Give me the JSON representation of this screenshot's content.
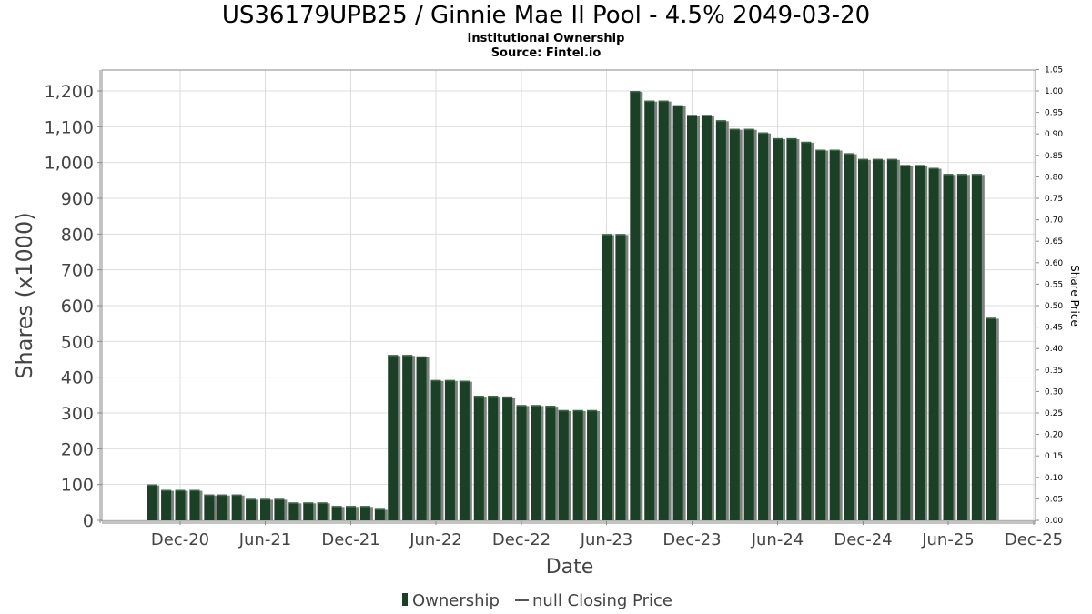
{
  "header": {
    "title": "US36179UPB25 / Ginnie Mae II Pool - 4.5% 2049-03-20",
    "subtitle": "Institutional Ownership",
    "source": "Source: Fintel.io"
  },
  "legend": {
    "ownership_label": "Ownership",
    "price_label": "null Closing Price"
  },
  "colors": {
    "bar": "#1a4025",
    "bar_highlight": "#3a6a45",
    "bar_shadow": "#808080",
    "grid": "#dddddd",
    "axis": "#888888"
  },
  "chart_data": {
    "type": "bar",
    "title": "US36179UPB25 / Ginnie Mae II Pool - 4.5% 2049-03-20",
    "xlabel": "Date",
    "ylabel": "Shares (x1000)",
    "y2label": "Share Price",
    "ylim": [
      0,
      1250
    ],
    "y2lim": [
      0,
      1.05
    ],
    "y_ticks": [
      0,
      100,
      200,
      300,
      400,
      500,
      600,
      700,
      800,
      900,
      1000,
      1100,
      1200
    ],
    "y_tick_labels": [
      "0",
      "100",
      "200",
      "300",
      "400",
      "500",
      "600",
      "700",
      "800",
      "900",
      "1,000",
      "1,100",
      "1,200"
    ],
    "y2_tick_labels": [
      "0.00",
      "0.05",
      "0.10",
      "0.15",
      "0.20",
      "0.25",
      "0.30",
      "0.35",
      "0.40",
      "0.45",
      "0.50",
      "0.55",
      "0.60",
      "0.65",
      "0.70",
      "0.75",
      "0.80",
      "0.85",
      "0.90",
      "0.95",
      "1.00",
      "1.05"
    ],
    "x_start": "2020-07-01",
    "x_end": "2025-12-31",
    "x_ticks": [
      "2020-12-01",
      "2021-06-01",
      "2021-12-01",
      "2022-06-01",
      "2022-12-01",
      "2023-06-01",
      "2023-12-01",
      "2024-06-01",
      "2024-12-01",
      "2025-06-01",
      "2025-12-01"
    ],
    "x_tick_labels": [
      "Dec-20",
      "Jun-21",
      "Dec-21",
      "Jun-22",
      "Dec-22",
      "Jun-23",
      "Dec-23",
      "Jun-24",
      "Dec-24",
      "Jun-25",
      "Dec-25"
    ],
    "grid": true,
    "legend_position": "bottom",
    "series": [
      {
        "name": "Ownership",
        "dates": [
          "2020-10-01",
          "2020-11-01",
          "2020-12-01",
          "2021-01-01",
          "2021-02-01",
          "2021-03-01",
          "2021-04-01",
          "2021-05-01",
          "2021-06-01",
          "2021-07-01",
          "2021-08-01",
          "2021-09-01",
          "2021-10-01",
          "2021-11-01",
          "2021-12-01",
          "2022-01-01",
          "2022-02-01",
          "2022-03-01",
          "2022-04-01",
          "2022-05-01",
          "2022-06-01",
          "2022-07-01",
          "2022-08-01",
          "2022-09-01",
          "2022-10-01",
          "2022-11-01",
          "2022-12-01",
          "2023-01-01",
          "2023-02-01",
          "2023-03-01",
          "2023-04-01",
          "2023-05-01",
          "2023-06-01",
          "2023-07-01",
          "2023-08-01",
          "2023-09-01",
          "2023-10-01",
          "2023-11-01",
          "2023-12-01",
          "2024-01-01",
          "2024-02-01",
          "2024-03-01",
          "2024-04-01",
          "2024-05-01",
          "2024-06-01",
          "2024-07-01",
          "2024-08-01",
          "2024-09-01",
          "2024-10-01",
          "2024-11-01",
          "2024-12-01",
          "2025-01-01",
          "2025-02-01",
          "2025-03-01",
          "2025-04-01",
          "2025-05-01",
          "2025-06-01",
          "2025-07-01",
          "2025-08-01",
          "2025-09-01"
        ],
        "values": [
          100,
          85,
          85,
          85,
          72,
          72,
          72,
          60,
          60,
          60,
          50,
          50,
          50,
          40,
          40,
          40,
          32,
          462,
          462,
          458,
          392,
          392,
          390,
          348,
          348,
          346,
          322,
          322,
          320,
          308,
          308,
          308,
          800,
          800,
          1200,
          1173,
          1173,
          1160,
          1133,
          1133,
          1118,
          1094,
          1094,
          1084,
          1068,
          1068,
          1058,
          1036,
          1036,
          1026,
          1010,
          1010,
          1010,
          993,
          993,
          985,
          968,
          968,
          968,
          566
        ]
      }
    ]
  }
}
